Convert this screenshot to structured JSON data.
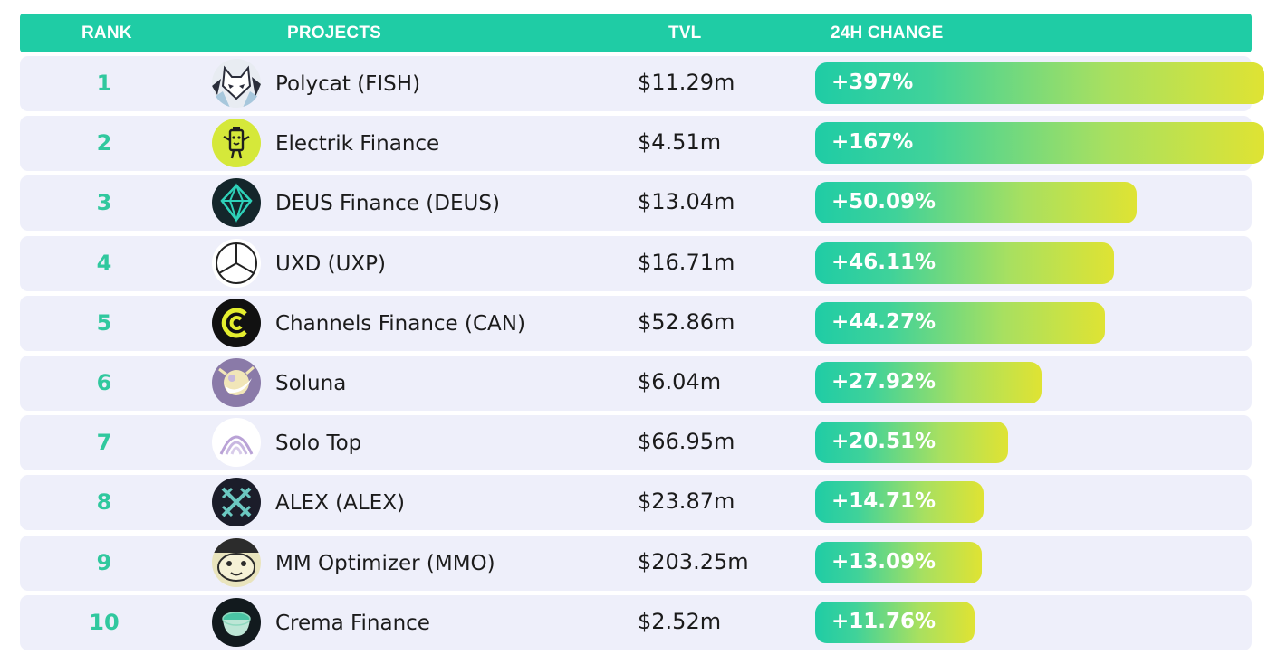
{
  "header": {
    "rank": "RANK",
    "projects": "PROJECTS",
    "tvl": "TVL",
    "change": "24H CHANGE"
  },
  "colors": {
    "header_bg": "#1fcca5",
    "row_bg": "#eeeffa",
    "rank_text": "#30c89e",
    "bar_start": "#1fcca5",
    "bar_end": "#dfe333"
  },
  "chart_data": {
    "type": "bar",
    "orientation": "horizontal",
    "title": "",
    "categories": [
      "Polycat (FISH)",
      "Electrik Finance",
      "DEUS Finance (DEUS)",
      "UXD (UXP)",
      "Channels Finance (CAN)",
      "Soluna",
      "Solo Top",
      "ALEX (ALEX)",
      "MM Optimizer (MMO)",
      "Crema Finance"
    ],
    "values": [
      397,
      167,
      50.09,
      46.11,
      44.27,
      27.92,
      20.51,
      14.71,
      13.09,
      11.76
    ],
    "bar_fill_fraction": [
      1.0,
      1.0,
      0.715,
      0.665,
      0.645,
      0.505,
      0.43,
      0.375,
      0.37,
      0.355
    ],
    "unit": "%"
  },
  "rows": [
    {
      "rank": "1",
      "name": "Polycat (FISH)",
      "tvl": "$11.29m",
      "change": "+397%",
      "icon": "polycat-logo-icon"
    },
    {
      "rank": "2",
      "name": "Electrik Finance",
      "tvl": "$4.51m",
      "change": "+167%",
      "icon": "electrik-logo-icon"
    },
    {
      "rank": "3",
      "name": "DEUS Finance (DEUS)",
      "tvl": "$13.04m",
      "change": "+50.09%",
      "icon": "deus-logo-icon"
    },
    {
      "rank": "4",
      "name": "UXD (UXP)",
      "tvl": "$16.71m",
      "change": "+46.11%",
      "icon": "uxd-logo-icon"
    },
    {
      "rank": "5",
      "name": "Channels Finance (CAN)",
      "tvl": "$52.86m",
      "change": "+44.27%",
      "icon": "channels-logo-icon"
    },
    {
      "rank": "6",
      "name": "Soluna",
      "tvl": "$6.04m",
      "change": "+27.92%",
      "icon": "soluna-logo-icon"
    },
    {
      "rank": "7",
      "name": "Solo Top",
      "tvl": "$66.95m",
      "change": "+20.51%",
      "icon": "solotop-logo-icon"
    },
    {
      "rank": "8",
      "name": "ALEX (ALEX)",
      "tvl": "$23.87m",
      "change": "+14.71%",
      "icon": "alex-logo-icon"
    },
    {
      "rank": "9",
      "name": "MM Optimizer (MMO)",
      "tvl": "$203.25m",
      "change": "+13.09%",
      "icon": "mmo-logo-icon"
    },
    {
      "rank": "10",
      "name": "Crema Finance",
      "tvl": "$2.52m",
      "change": "+11.76%",
      "icon": "crema-logo-icon"
    }
  ]
}
